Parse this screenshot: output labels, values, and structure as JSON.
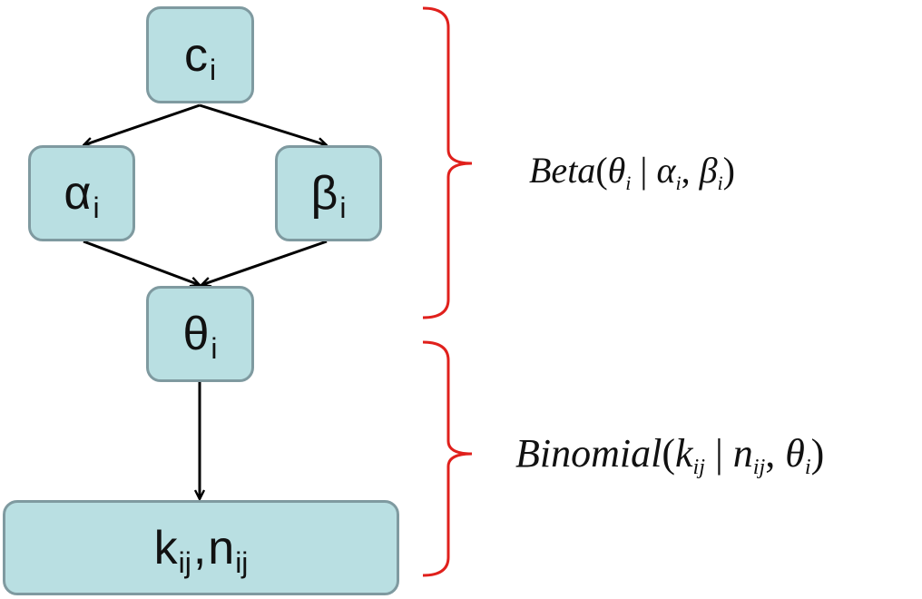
{
  "nodes": {
    "c": {
      "main": "c",
      "sub": "i"
    },
    "alpha": {
      "main": "α",
      "sub": "i"
    },
    "beta": {
      "main": "β",
      "sub": "i"
    },
    "theta": {
      "main": "θ",
      "sub": "i"
    },
    "k": {
      "main1": "k",
      "sub1": "ij",
      "comma": ",",
      "main2": "n",
      "sub2": "ij"
    }
  },
  "formulas": {
    "beta_dist": {
      "name": "Beta",
      "open": "(",
      "var": "θ",
      "var_sub": "i",
      "bar": " | ",
      "p1": "α",
      "p1_sub": "i",
      "sep": ", ",
      "p2": "β",
      "p2_sub": "i",
      "close": ")"
    },
    "binomial_dist": {
      "name": "Binomial",
      "open": "(",
      "var": "k",
      "var_sub": "ij",
      "bar": " | ",
      "p1": "n",
      "p1_sub": "ij",
      "sep": ", ",
      "p2": "θ",
      "p2_sub": "i",
      "close": ")"
    }
  },
  "colors": {
    "node_fill": "#b9dfe2",
    "node_border": "#7f9aa0",
    "arrow": "#000000",
    "brace": "#e0201c"
  }
}
